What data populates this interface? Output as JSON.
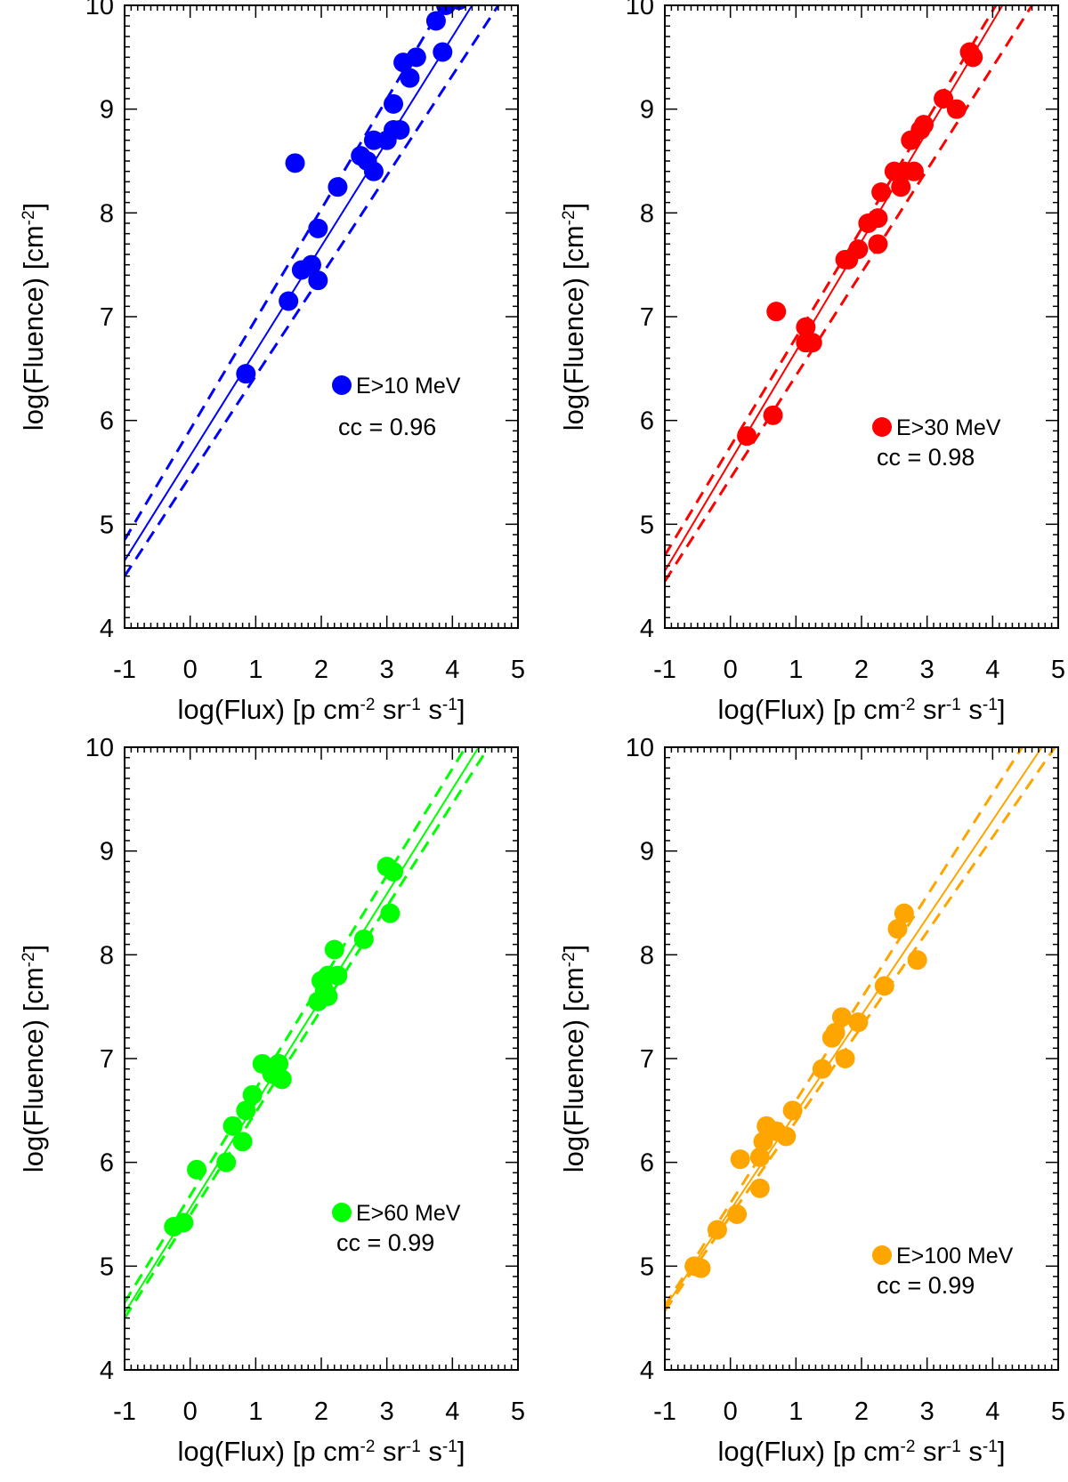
{
  "chart_data": [
    {
      "type": "scatter",
      "legend": "E>10 MeV",
      "cc_label": "cc = 0.96",
      "color": "#0000ff",
      "xlabel": "log(Flux) [p cm",
      "xlabel_sup1": "-2",
      "xlabel_mid1": " sr",
      "xlabel_sup2": "-1",
      "xlabel_mid2": " s",
      "xlabel_sup3": "-1",
      "xlabel_end": "]",
      "ylabel": "log(Fluence) [cm",
      "ylabel_sup": "-2",
      "ylabel_end": "]",
      "xlim": [
        -1,
        5
      ],
      "ylim": [
        4,
        10
      ],
      "xticks": [
        "-1",
        "0",
        "1",
        "2",
        "3",
        "4",
        "5"
      ],
      "yticks": [
        "4",
        "5",
        "6",
        "7",
        "8",
        "9",
        "10"
      ],
      "points": [
        [
          0.85,
          6.45
        ],
        [
          1.5,
          7.15
        ],
        [
          1.6,
          8.48
        ],
        [
          1.7,
          7.45
        ],
        [
          1.85,
          7.5
        ],
        [
          1.95,
          7.85
        ],
        [
          1.95,
          7.35
        ],
        [
          2.25,
          8.25
        ],
        [
          2.6,
          8.55
        ],
        [
          2.7,
          8.5
        ],
        [
          2.8,
          8.4
        ],
        [
          2.8,
          8.7
        ],
        [
          3.0,
          8.7
        ],
        [
          3.1,
          8.8
        ],
        [
          3.1,
          9.05
        ],
        [
          3.2,
          8.8
        ],
        [
          3.25,
          9.45
        ],
        [
          3.35,
          9.3
        ],
        [
          3.45,
          9.5
        ],
        [
          3.75,
          9.85
        ],
        [
          3.85,
          9.55
        ],
        [
          3.9,
          10.0
        ],
        [
          4.1,
          10.05
        ]
      ],
      "fit": {
        "x": [
          -1,
          4.3
        ],
        "y": [
          4.65,
          10.0
        ]
      },
      "band_upper": {
        "x": [
          -1,
          3.85
        ],
        "y": [
          4.85,
          10.0
        ]
      },
      "band_lower": {
        "x": [
          -1,
          4.7
        ],
        "y": [
          4.5,
          10.0
        ]
      }
    },
    {
      "type": "scatter",
      "legend": "E>30 MeV",
      "cc_label": "cc = 0.98",
      "color": "#ff0000",
      "xlabel": "log(Flux) [p cm",
      "xlabel_sup1": "-2",
      "xlabel_mid1": " sr",
      "xlabel_sup2": "-1",
      "xlabel_mid2": " s",
      "xlabel_sup3": "-1",
      "xlabel_end": "]",
      "ylabel": "log(Fluence) [cm",
      "ylabel_sup": "-2",
      "ylabel_end": "]",
      "xlim": [
        -1,
        5
      ],
      "ylim": [
        4,
        10
      ],
      "xticks": [
        "-1",
        "0",
        "1",
        "2",
        "3",
        "4",
        "5"
      ],
      "yticks": [
        "4",
        "5",
        "6",
        "7",
        "8",
        "9",
        "10"
      ],
      "points": [
        [
          0.25,
          5.85
        ],
        [
          0.65,
          6.05
        ],
        [
          0.7,
          7.05
        ],
        [
          1.15,
          6.9
        ],
        [
          1.15,
          6.75
        ],
        [
          1.25,
          6.75
        ],
        [
          1.75,
          7.55
        ],
        [
          1.8,
          7.55
        ],
        [
          1.95,
          7.65
        ],
        [
          2.1,
          7.9
        ],
        [
          2.25,
          7.95
        ],
        [
          2.25,
          7.7
        ],
        [
          2.3,
          8.2
        ],
        [
          2.5,
          8.4
        ],
        [
          2.6,
          8.25
        ],
        [
          2.65,
          8.4
        ],
        [
          2.75,
          8.7
        ],
        [
          2.8,
          8.4
        ],
        [
          2.9,
          8.8
        ],
        [
          2.95,
          8.85
        ],
        [
          3.25,
          9.1
        ],
        [
          3.45,
          9.0
        ],
        [
          3.65,
          9.55
        ],
        [
          3.7,
          9.5
        ]
      ],
      "fit": {
        "x": [
          -1,
          4.15
        ],
        "y": [
          4.55,
          10.0
        ]
      },
      "band_upper": {
        "x": [
          -1,
          4.05
        ],
        "y": [
          4.7,
          10.0
        ]
      },
      "band_lower": {
        "x": [
          -1,
          4.6
        ],
        "y": [
          4.45,
          10.0
        ]
      }
    },
    {
      "type": "scatter",
      "legend": "E>60 MeV",
      "cc_label": "cc = 0.99",
      "color": "#00ff00",
      "xlabel": "log(Flux) [p cm",
      "xlabel_sup1": "-2",
      "xlabel_mid1": " sr",
      "xlabel_sup2": "-1",
      "xlabel_mid2": " s",
      "xlabel_sup3": "-1",
      "xlabel_end": "]",
      "ylabel": "log(Fluence) [cm",
      "ylabel_sup": "-2",
      "ylabel_end": "]",
      "xlim": [
        -1,
        5
      ],
      "ylim": [
        4,
        10
      ],
      "xticks": [
        "-1",
        "0",
        "1",
        "2",
        "3",
        "4",
        "5"
      ],
      "yticks": [
        "4",
        "5",
        "6",
        "7",
        "8",
        "9",
        "10"
      ],
      "points": [
        [
          -0.25,
          5.38
        ],
        [
          -0.1,
          5.42
        ],
        [
          0.1,
          5.93
        ],
        [
          0.55,
          6.0
        ],
        [
          0.65,
          6.35
        ],
        [
          0.8,
          6.2
        ],
        [
          0.85,
          6.5
        ],
        [
          0.95,
          6.65
        ],
        [
          1.1,
          6.95
        ],
        [
          1.25,
          6.85
        ],
        [
          1.35,
          6.95
        ],
        [
          1.4,
          6.8
        ],
        [
          1.95,
          7.55
        ],
        [
          2.0,
          7.75
        ],
        [
          2.05,
          7.65
        ],
        [
          2.1,
          7.8
        ],
        [
          2.1,
          7.6
        ],
        [
          2.2,
          8.05
        ],
        [
          2.25,
          7.8
        ],
        [
          2.65,
          8.15
        ],
        [
          3.0,
          8.85
        ],
        [
          3.05,
          8.4
        ],
        [
          3.1,
          8.8
        ]
      ],
      "fit": {
        "x": [
          -1,
          4.4
        ],
        "y": [
          4.55,
          10.0
        ]
      },
      "band_upper": {
        "x": [
          -1,
          4.2
        ],
        "y": [
          4.65,
          10.0
        ]
      },
      "band_lower": {
        "x": [
          -1,
          4.55
        ],
        "y": [
          4.5,
          10.0
        ]
      }
    },
    {
      "type": "scatter",
      "legend": "E>100 MeV",
      "cc_label": "cc = 0.99",
      "color": "#ffa500",
      "xlabel": "log(Flux) [p cm",
      "xlabel_sup1": "-2",
      "xlabel_mid1": " sr",
      "xlabel_sup2": "-1",
      "xlabel_mid2": " s",
      "xlabel_sup3": "-1",
      "xlabel_end": "]",
      "ylabel": "log(Fluence) [cm",
      "ylabel_sup": "-2",
      "ylabel_end": "]",
      "xlim": [
        -1,
        5
      ],
      "ylim": [
        4,
        10
      ],
      "xticks": [
        "-1",
        "0",
        "1",
        "2",
        "3",
        "4",
        "5"
      ],
      "yticks": [
        "4",
        "5",
        "6",
        "7",
        "8",
        "9",
        "10"
      ],
      "points": [
        [
          -0.55,
          5.0
        ],
        [
          -0.45,
          4.98
        ],
        [
          -0.2,
          5.35
        ],
        [
          0.1,
          5.5
        ],
        [
          0.15,
          6.03
        ],
        [
          0.45,
          6.05
        ],
        [
          0.45,
          5.75
        ],
        [
          0.5,
          6.2
        ],
        [
          0.55,
          6.35
        ],
        [
          0.7,
          6.3
        ],
        [
          0.85,
          6.25
        ],
        [
          0.95,
          6.5
        ],
        [
          1.4,
          6.9
        ],
        [
          1.55,
          7.2
        ],
        [
          1.6,
          7.25
        ],
        [
          1.7,
          7.4
        ],
        [
          1.75,
          7.0
        ],
        [
          1.95,
          7.35
        ],
        [
          2.35,
          7.7
        ],
        [
          2.55,
          8.25
        ],
        [
          2.65,
          8.4
        ],
        [
          2.85,
          7.95
        ]
      ],
      "fit": {
        "x": [
          -1,
          4.75
        ],
        "y": [
          4.6,
          10.0
        ]
      },
      "band_upper": {
        "x": [
          -1,
          4.45
        ],
        "y": [
          4.62,
          10.0
        ]
      },
      "band_lower": {
        "x": [
          -1,
          4.95
        ],
        "y": [
          4.57,
          10.0
        ]
      }
    }
  ]
}
